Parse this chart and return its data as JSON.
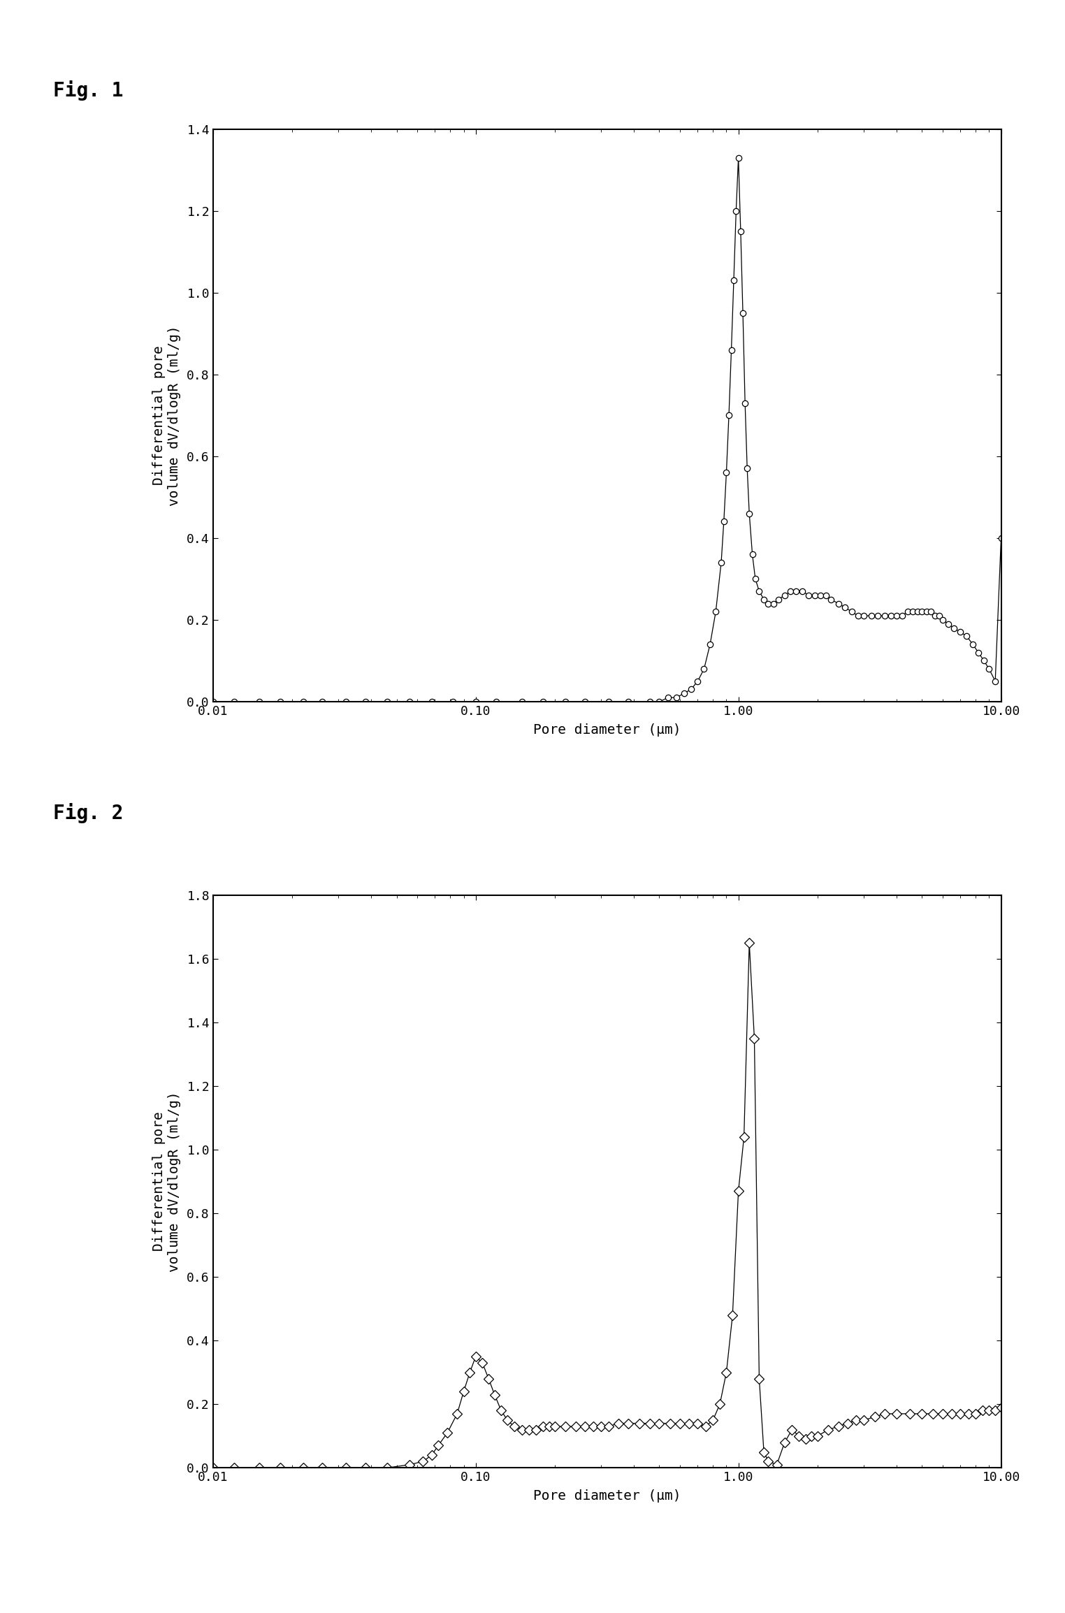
{
  "fig1_label": "Fig. 1",
  "fig2_label": "Fig. 2",
  "xlabel": "Pore diameter (μm)",
  "ylabel_line1": "Differential pore",
  "ylabel_line2": "volume dV/dlogR (ml/g)",
  "fig1_xlim": [
    0.01,
    10.0
  ],
  "fig1_ylim": [
    0.0,
    1.4
  ],
  "fig1_yticks": [
    0.0,
    0.2,
    0.4,
    0.6,
    0.8,
    1.0,
    1.2,
    1.4
  ],
  "fig2_xlim": [
    0.01,
    10.0
  ],
  "fig2_ylim": [
    0.0,
    1.8
  ],
  "fig2_yticks": [
    0.0,
    0.2,
    0.4,
    0.6,
    0.8,
    1.0,
    1.2,
    1.4,
    1.6,
    1.8
  ],
  "fig1_x": [
    0.01,
    0.012,
    0.015,
    0.018,
    0.022,
    0.026,
    0.032,
    0.038,
    0.046,
    0.056,
    0.068,
    0.082,
    0.1,
    0.12,
    0.15,
    0.18,
    0.22,
    0.26,
    0.32,
    0.38,
    0.46,
    0.5,
    0.54,
    0.58,
    0.62,
    0.66,
    0.7,
    0.74,
    0.78,
    0.82,
    0.86,
    0.88,
    0.9,
    0.92,
    0.94,
    0.96,
    0.98,
    1.0,
    1.02,
    1.04,
    1.06,
    1.08,
    1.1,
    1.13,
    1.16,
    1.2,
    1.25,
    1.3,
    1.36,
    1.42,
    1.5,
    1.58,
    1.66,
    1.75,
    1.85,
    1.95,
    2.05,
    2.15,
    2.25,
    2.4,
    2.55,
    2.7,
    2.85,
    3.0,
    3.2,
    3.4,
    3.6,
    3.8,
    4.0,
    4.2,
    4.4,
    4.6,
    4.8,
    5.0,
    5.2,
    5.4,
    5.6,
    5.8,
    6.0,
    6.3,
    6.6,
    7.0,
    7.4,
    7.8,
    8.2,
    8.6,
    9.0,
    9.5,
    10.0
  ],
  "fig1_y": [
    0.0,
    0.0,
    0.0,
    0.0,
    0.0,
    0.0,
    0.0,
    0.0,
    0.0,
    0.0,
    0.0,
    0.0,
    0.0,
    0.0,
    0.0,
    0.0,
    0.0,
    0.0,
    0.0,
    0.0,
    0.0,
    0.0,
    0.01,
    0.01,
    0.02,
    0.03,
    0.05,
    0.08,
    0.14,
    0.22,
    0.34,
    0.44,
    0.56,
    0.7,
    0.86,
    1.03,
    1.2,
    1.33,
    1.15,
    0.95,
    0.73,
    0.57,
    0.46,
    0.36,
    0.3,
    0.27,
    0.25,
    0.24,
    0.24,
    0.25,
    0.26,
    0.27,
    0.27,
    0.27,
    0.26,
    0.26,
    0.26,
    0.26,
    0.25,
    0.24,
    0.23,
    0.22,
    0.21,
    0.21,
    0.21,
    0.21,
    0.21,
    0.21,
    0.21,
    0.21,
    0.22,
    0.22,
    0.22,
    0.22,
    0.22,
    0.22,
    0.21,
    0.21,
    0.2,
    0.19,
    0.18,
    0.17,
    0.16,
    0.14,
    0.12,
    0.1,
    0.08,
    0.05,
    0.4
  ],
  "fig2_x": [
    0.01,
    0.012,
    0.015,
    0.018,
    0.022,
    0.026,
    0.032,
    0.038,
    0.046,
    0.056,
    0.063,
    0.068,
    0.072,
    0.078,
    0.085,
    0.09,
    0.095,
    0.1,
    0.106,
    0.112,
    0.118,
    0.125,
    0.132,
    0.14,
    0.15,
    0.16,
    0.17,
    0.18,
    0.19,
    0.2,
    0.22,
    0.24,
    0.26,
    0.28,
    0.3,
    0.32,
    0.35,
    0.38,
    0.42,
    0.46,
    0.5,
    0.55,
    0.6,
    0.65,
    0.7,
    0.75,
    0.8,
    0.85,
    0.9,
    0.95,
    1.0,
    1.05,
    1.1,
    1.15,
    1.2,
    1.25,
    1.3,
    1.4,
    1.5,
    1.6,
    1.7,
    1.8,
    1.9,
    2.0,
    2.2,
    2.4,
    2.6,
    2.8,
    3.0,
    3.3,
    3.6,
    4.0,
    4.5,
    5.0,
    5.5,
    6.0,
    6.5,
    7.0,
    7.5,
    8.0,
    8.5,
    9.0,
    9.5,
    10.0
  ],
  "fig2_y": [
    0.0,
    0.0,
    0.0,
    0.0,
    0.0,
    0.0,
    0.0,
    0.0,
    0.0,
    0.01,
    0.02,
    0.04,
    0.07,
    0.11,
    0.17,
    0.24,
    0.3,
    0.35,
    0.33,
    0.28,
    0.23,
    0.18,
    0.15,
    0.13,
    0.12,
    0.12,
    0.12,
    0.13,
    0.13,
    0.13,
    0.13,
    0.13,
    0.13,
    0.13,
    0.13,
    0.13,
    0.14,
    0.14,
    0.14,
    0.14,
    0.14,
    0.14,
    0.14,
    0.14,
    0.14,
    0.13,
    0.15,
    0.2,
    0.3,
    0.48,
    0.87,
    1.04,
    1.65,
    1.35,
    0.28,
    0.05,
    0.02,
    0.01,
    0.08,
    0.12,
    0.1,
    0.09,
    0.1,
    0.1,
    0.12,
    0.13,
    0.14,
    0.15,
    0.15,
    0.16,
    0.17,
    0.17,
    0.17,
    0.17,
    0.17,
    0.17,
    0.17,
    0.17,
    0.17,
    0.17,
    0.18,
    0.18,
    0.18,
    0.19
  ],
  "background_color": "#ffffff",
  "line_color": "#000000",
  "marker_size1": 6,
  "marker_size2": 7,
  "fig_label_fontsize": 20,
  "axis_label_fontsize": 14,
  "tick_fontsize": 13
}
